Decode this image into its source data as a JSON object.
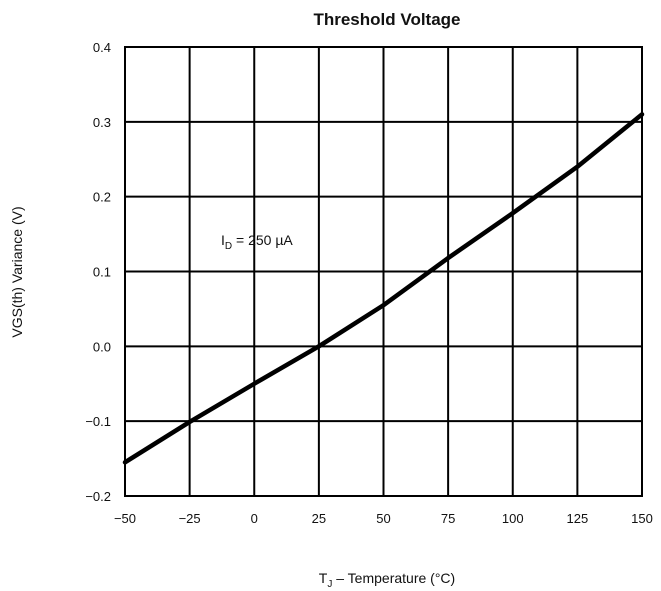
{
  "chart_data": {
    "type": "line",
    "title": "Threshold Voltage",
    "ylabel": "VGS(th) Variance (V)",
    "xlabel_main": "T",
    "xlabel_sub": "J",
    "xlabel_rest": " – Temperature (°C)",
    "annotation_main": "I",
    "annotation_sub": "D",
    "annotation_rest": " = 250 µA",
    "xlim": [
      -50,
      150
    ],
    "ylim": [
      -0.2,
      0.4
    ],
    "xticks": [
      -50,
      -25,
      0,
      25,
      50,
      75,
      100,
      125,
      150
    ],
    "xtick_labels": [
      "−50",
      "−25",
      "0",
      "25",
      "50",
      "75",
      "100",
      "125",
      "150"
    ],
    "yticks": [
      -0.2,
      -0.1,
      0.0,
      0.1,
      0.2,
      0.3,
      0.4
    ],
    "ytick_labels": [
      "−0.2",
      "−0.1",
      "0.0",
      "0.1",
      "0.2",
      "0.3",
      "0.4"
    ],
    "grid": true,
    "series": [
      {
        "color": "#000000",
        "x": [
          -50,
          -25,
          0,
          25,
          50,
          75,
          100,
          125,
          150
        ],
        "y": [
          -0.155,
          -0.101,
          -0.05,
          0.0,
          0.055,
          0.118,
          0.178,
          0.24,
          0.31
        ]
      }
    ]
  }
}
